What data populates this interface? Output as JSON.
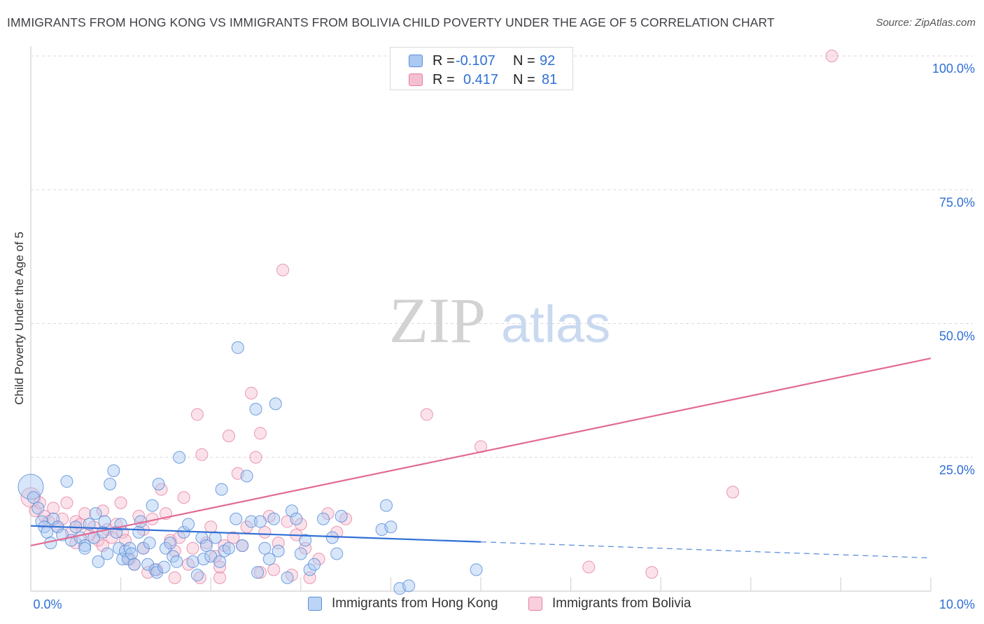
{
  "header": {
    "title": "IMMIGRANTS FROM HONG KONG VS IMMIGRANTS FROM BOLIVIA CHILD POVERTY UNDER THE AGE OF 5 CORRELATION CHART",
    "source": "Source: ZipAtlas.com"
  },
  "watermark": {
    "zip": "ZIP",
    "atlas": "atlas"
  },
  "legend": {
    "r_label": "R =",
    "n_label": "N =",
    "rows": [
      {
        "r": "-0.107",
        "n": "92"
      },
      {
        "r": "0.417",
        "n": "81"
      }
    ]
  },
  "colors": {
    "hong_kong_fill": "#a9c8f2",
    "hong_kong_stroke": "#5b8fd9",
    "hong_kong_line": "#2f6fd6",
    "bolivia_fill": "#f6bfd0",
    "bolivia_stroke": "#e57fa0",
    "bolivia_line": "#e26a94",
    "axis_value": "#2f6fd6",
    "grid": "#d8d8d8"
  },
  "chart_data": {
    "type": "scatter",
    "title": "IMMIGRANTS FROM HONG KONG VS IMMIGRANTS FROM BOLIVIA CHILD POVERTY UNDER THE AGE OF 5 CORRELATION CHART",
    "xlabel": "",
    "ylabel": "Child Poverty Under the Age of 5",
    "xlim": [
      0,
      10
    ],
    "ylim": [
      0,
      100
    ],
    "x_tick_labels": [
      "0.0%",
      "10.0%"
    ],
    "y_ticks": [
      25,
      50,
      75,
      100
    ],
    "y_tick_labels": [
      "25.0%",
      "50.0%",
      "75.0%",
      "100.0%"
    ],
    "grid": true,
    "legend_position": "top-center",
    "series": [
      {
        "name": "Immigrants from Hong Kong",
        "r": -0.107,
        "n": 92,
        "trend": {
          "x0": 0,
          "y0": 12.2,
          "x1": 5.0,
          "y1": 9.2,
          "dashed_to_x": 10.0,
          "dashed_to_y": 6.2
        },
        "points": [
          [
            0.0,
            19.5
          ],
          [
            0.03,
            17.5
          ],
          [
            0.08,
            15.5
          ],
          [
            0.12,
            13.0
          ],
          [
            0.15,
            12.0
          ],
          [
            0.18,
            11.0
          ],
          [
            0.22,
            9.0
          ],
          [
            0.25,
            13.5
          ],
          [
            0.3,
            12.0
          ],
          [
            0.35,
            10.5
          ],
          [
            0.4,
            20.5
          ],
          [
            0.45,
            9.5
          ],
          [
            0.5,
            12.0
          ],
          [
            0.55,
            10.0
          ],
          [
            0.6,
            8.5
          ],
          [
            0.65,
            12.5
          ],
          [
            0.7,
            10.0
          ],
          [
            0.72,
            14.5
          ],
          [
            0.75,
            5.5
          ],
          [
            0.8,
            11.0
          ],
          [
            0.82,
            13.0
          ],
          [
            0.85,
            7.0
          ],
          [
            0.88,
            20.0
          ],
          [
            0.92,
            22.5
          ],
          [
            0.95,
            11.0
          ],
          [
            0.98,
            8.0
          ],
          [
            1.02,
            6.0
          ],
          [
            1.05,
            7.5
          ],
          [
            1.08,
            6.0
          ],
          [
            1.1,
            8.0
          ],
          [
            1.12,
            7.0
          ],
          [
            1.15,
            5.0
          ],
          [
            1.2,
            11.0
          ],
          [
            1.22,
            13.0
          ],
          [
            1.25,
            8.0
          ],
          [
            1.3,
            5.0
          ],
          [
            1.32,
            9.0
          ],
          [
            1.35,
            16.0
          ],
          [
            1.38,
            4.0
          ],
          [
            1.4,
            3.5
          ],
          [
            1.42,
            20.0
          ],
          [
            1.48,
            4.5
          ],
          [
            1.5,
            8.0
          ],
          [
            1.55,
            9.0
          ],
          [
            1.58,
            6.5
          ],
          [
            1.62,
            5.5
          ],
          [
            1.65,
            25.0
          ],
          [
            1.7,
            11.0
          ],
          [
            1.75,
            12.5
          ],
          [
            1.8,
            5.5
          ],
          [
            1.85,
            3.0
          ],
          [
            1.9,
            10.0
          ],
          [
            1.92,
            6.0
          ],
          [
            1.95,
            8.5
          ],
          [
            2.0,
            6.5
          ],
          [
            2.05,
            10.0
          ],
          [
            2.1,
            5.5
          ],
          [
            2.12,
            19.0
          ],
          [
            2.15,
            7.5
          ],
          [
            2.2,
            8.0
          ],
          [
            2.28,
            13.5
          ],
          [
            2.3,
            45.5
          ],
          [
            2.35,
            8.5
          ],
          [
            2.4,
            21.5
          ],
          [
            2.45,
            13.0
          ],
          [
            2.5,
            34.0
          ],
          [
            2.52,
            3.5
          ],
          [
            2.55,
            13.0
          ],
          [
            2.6,
            8.0
          ],
          [
            2.65,
            6.0
          ],
          [
            2.7,
            13.5
          ],
          [
            2.72,
            35.0
          ],
          [
            2.75,
            7.5
          ],
          [
            2.85,
            2.5
          ],
          [
            2.9,
            15.0
          ],
          [
            2.95,
            13.5
          ],
          [
            3.0,
            7.0
          ],
          [
            3.05,
            9.5
          ],
          [
            3.1,
            4.0
          ],
          [
            3.15,
            5.0
          ],
          [
            3.25,
            13.5
          ],
          [
            3.35,
            10.0
          ],
          [
            3.4,
            7.0
          ],
          [
            3.45,
            14.0
          ],
          [
            3.9,
            11.5
          ],
          [
            3.95,
            16.0
          ],
          [
            4.0,
            12.0
          ],
          [
            4.1,
            0.5
          ],
          [
            4.2,
            1.0
          ],
          [
            4.95,
            4.0
          ],
          [
            1.0,
            12.5
          ],
          [
            0.6,
            8.0
          ]
        ]
      },
      {
        "name": "Immigrants from Bolivia",
        "r": 0.417,
        "n": 81,
        "trend": {
          "x0": 0,
          "y0": 8.5,
          "x1": 10.0,
          "y1": 43.5
        },
        "points": [
          [
            0.0,
            17.5
          ],
          [
            0.05,
            15.0
          ],
          [
            0.1,
            16.5
          ],
          [
            0.15,
            14.0
          ],
          [
            0.2,
            13.0
          ],
          [
            0.25,
            15.5
          ],
          [
            0.3,
            12.0
          ],
          [
            0.35,
            13.5
          ],
          [
            0.4,
            16.5
          ],
          [
            0.45,
            11.0
          ],
          [
            0.5,
            13.0
          ],
          [
            0.55,
            12.5
          ],
          [
            0.6,
            14.5
          ],
          [
            0.65,
            10.5
          ],
          [
            0.7,
            12.0
          ],
          [
            0.75,
            9.5
          ],
          [
            0.8,
            15.0
          ],
          [
            0.85,
            11.5
          ],
          [
            0.9,
            10.0
          ],
          [
            0.95,
            12.5
          ],
          [
            1.0,
            16.5
          ],
          [
            1.02,
            11.0
          ],
          [
            1.05,
            9.5
          ],
          [
            1.1,
            6.0
          ],
          [
            1.15,
            5.0
          ],
          [
            1.2,
            14.0
          ],
          [
            1.25,
            8.0
          ],
          [
            1.3,
            3.5
          ],
          [
            1.35,
            13.5
          ],
          [
            1.4,
            4.0
          ],
          [
            1.45,
            19.0
          ],
          [
            1.5,
            14.5
          ],
          [
            1.55,
            9.5
          ],
          [
            1.6,
            7.5
          ],
          [
            1.65,
            10.0
          ],
          [
            1.7,
            17.5
          ],
          [
            1.75,
            5.0
          ],
          [
            1.8,
            8.0
          ],
          [
            1.85,
            33.0
          ],
          [
            1.9,
            25.5
          ],
          [
            1.95,
            9.0
          ],
          [
            2.0,
            12.0
          ],
          [
            2.05,
            6.5
          ],
          [
            2.1,
            2.5
          ],
          [
            2.15,
            8.5
          ],
          [
            2.2,
            29.0
          ],
          [
            2.25,
            10.0
          ],
          [
            2.3,
            22.0
          ],
          [
            2.35,
            8.5
          ],
          [
            2.4,
            12.0
          ],
          [
            2.45,
            37.0
          ],
          [
            2.5,
            25.0
          ],
          [
            2.55,
            29.5
          ],
          [
            2.6,
            11.0
          ],
          [
            2.65,
            14.0
          ],
          [
            2.7,
            4.0
          ],
          [
            2.75,
            9.0
          ],
          [
            2.8,
            60.0
          ],
          [
            2.85,
            13.0
          ],
          [
            2.9,
            3.0
          ],
          [
            2.95,
            10.5
          ],
          [
            3.0,
            12.5
          ],
          [
            3.05,
            8.0
          ],
          [
            3.1,
            2.5
          ],
          [
            3.2,
            6.0
          ],
          [
            3.3,
            14.5
          ],
          [
            3.4,
            11.0
          ],
          [
            3.5,
            13.5
          ],
          [
            4.4,
            33.0
          ],
          [
            5.0,
            27.0
          ],
          [
            6.2,
            4.5
          ],
          [
            6.9,
            3.5
          ],
          [
            7.8,
            18.5
          ],
          [
            8.9,
            100.0
          ],
          [
            1.6,
            2.5
          ],
          [
            0.8,
            8.5
          ],
          [
            0.5,
            9.0
          ],
          [
            1.25,
            11.5
          ],
          [
            2.1,
            4.5
          ],
          [
            2.55,
            3.5
          ],
          [
            1.88,
            2.5
          ]
        ]
      }
    ]
  },
  "bottom_legend": {
    "hong_kong": "Immigrants from Hong Kong",
    "bolivia": "Immigrants from Bolivia"
  }
}
